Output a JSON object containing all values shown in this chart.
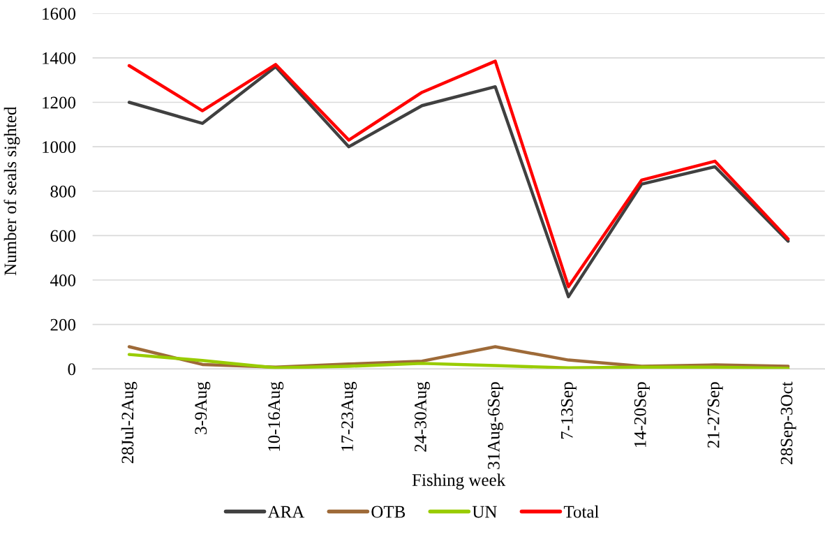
{
  "chart_data": {
    "type": "line",
    "xlabel": "Fishing week",
    "ylabel": "Number of seals sighted",
    "categories": [
      "28Jul-2Aug",
      "3-9Aug",
      "10-16Aug",
      "17-23Aug",
      "24-30Aug",
      "31Aug-6Sep",
      "7-13Sep",
      "14-20Sep",
      "21-27Sep",
      "28Sep-3Oct"
    ],
    "series": [
      {
        "name": "ARA",
        "color": "#404040",
        "values": [
          1200,
          1105,
          1360,
          1000,
          1185,
          1270,
          325,
          832,
          910,
          575
        ]
      },
      {
        "name": "OTB",
        "color": "#9e6a38",
        "values": [
          100,
          20,
          8,
          22,
          35,
          100,
          40,
          12,
          18,
          12
        ]
      },
      {
        "name": "UN",
        "color": "#99cc00",
        "values": [
          65,
          38,
          5,
          12,
          25,
          15,
          5,
          8,
          8,
          3
        ]
      },
      {
        "name": "Total",
        "color": "#ff0000",
        "values": [
          1365,
          1162,
          1370,
          1030,
          1245,
          1385,
          370,
          850,
          935,
          585
        ]
      }
    ],
    "ylim": [
      0,
      1600
    ],
    "yticks": [
      0,
      200,
      400,
      600,
      800,
      1000,
      1200,
      1400,
      1600
    ],
    "grid": "y",
    "legend": "bottom",
    "marker": "none",
    "line_style": "solid"
  }
}
